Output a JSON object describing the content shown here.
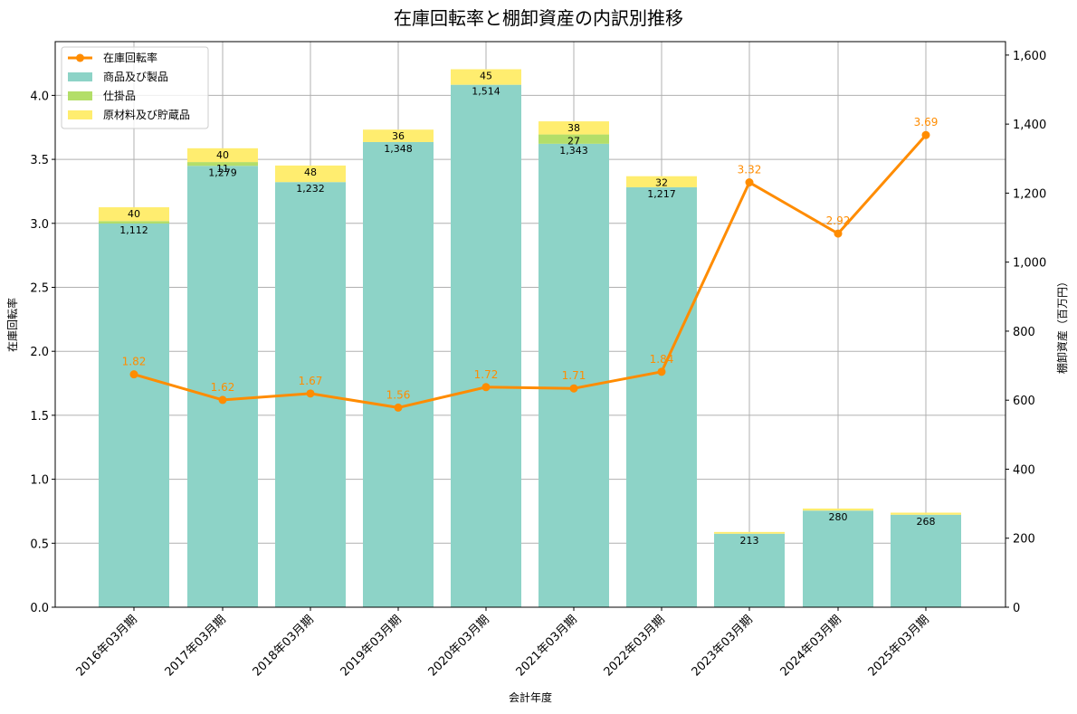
{
  "chart_data": {
    "type": "bar+line",
    "title": "在庫回転率と棚卸資産の内訳別推移",
    "xlabel": "会計年度",
    "ylabel_left": "在庫回転率",
    "ylabel_right": "棚卸資産（百万円）",
    "ylim_left": [
      0,
      4.42
    ],
    "ylim_right": [
      0,
      1639
    ],
    "yticks_left": [
      "0.0",
      "0.5",
      "1.0",
      "1.5",
      "2.0",
      "2.5",
      "3.0",
      "3.5",
      "4.0"
    ],
    "yticks_right": [
      "0",
      "200",
      "400",
      "600",
      "800",
      "1,000",
      "1,200",
      "1,400",
      "1,600"
    ],
    "grid": true,
    "legend_position": "upper left",
    "categories": [
      "2016年03月期",
      "2017年03月期",
      "2018年03月期",
      "2019年03月期",
      "2020年03月期",
      "2021年03月期",
      "2022年03月期",
      "2023年03月期",
      "2024年03月期",
      "2025年03月期"
    ],
    "series": [
      {
        "name": "在庫回転率",
        "type": "line",
        "axis": "left",
        "color": "#ff8c00",
        "values": [
          1.82,
          1.62,
          1.67,
          1.56,
          1.72,
          1.71,
          1.84,
          3.32,
          2.92,
          3.69
        ],
        "labels": [
          "1.82",
          "1.62",
          "1.67",
          "1.56",
          "1.72",
          "1.71",
          "1.84",
          "3.32",
          "2.92",
          "3.69"
        ]
      },
      {
        "name": "商品及び製品",
        "type": "bar",
        "axis": "right",
        "color": "#8dd3c7",
        "values": [
          1112,
          1279,
          1232,
          1348,
          1514,
          1343,
          1217,
          213,
          280,
          268
        ],
        "labels": [
          "1,112",
          "1,279",
          "1,232",
          "1,348",
          "1,514",
          "1,343",
          "1,217",
          "213",
          "280",
          "268"
        ]
      },
      {
        "name": "仕掛品",
        "type": "bar",
        "axis": "right",
        "color": "#b3de69",
        "values": [
          7,
          11,
          0,
          0,
          0,
          27,
          0,
          0,
          0,
          0
        ],
        "labels": [
          "",
          "11",
          "",
          "",
          "",
          "27",
          "",
          "",
          "",
          ""
        ]
      },
      {
        "name": "原材料及び貯蔵品",
        "type": "bar",
        "axis": "right",
        "color": "#ffed6f",
        "values": [
          40,
          40,
          48,
          36,
          45,
          38,
          32,
          5,
          6,
          6
        ],
        "labels": [
          "40",
          "40",
          "48",
          "36",
          "45",
          "38",
          "32",
          "",
          "",
          ""
        ]
      }
    ]
  }
}
